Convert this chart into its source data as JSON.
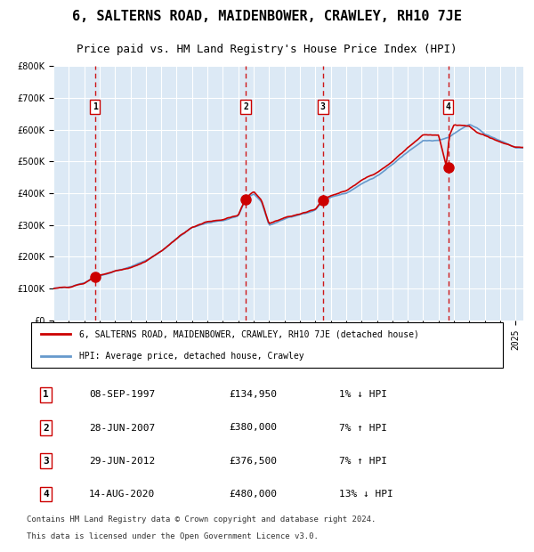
{
  "title": "6, SALTERNS ROAD, MAIDENBOWER, CRAWLEY, RH10 7JE",
  "subtitle": "Price paid vs. HM Land Registry's House Price Index (HPI)",
  "legend_line1": "6, SALTERNS ROAD, MAIDENBOWER, CRAWLEY, RH10 7JE (detached house)",
  "legend_line2": "HPI: Average price, detached house, Crawley",
  "footer1": "Contains HM Land Registry data © Crown copyright and database right 2024.",
  "footer2": "This data is licensed under the Open Government Licence v3.0.",
  "transactions": [
    {
      "num": 1,
      "date": "08-SEP-1997",
      "price": 134950,
      "pct": "1%",
      "dir": "↓",
      "x_year": 1997.69
    },
    {
      "num": 2,
      "date": "28-JUN-2007",
      "price": 380000,
      "pct": "7%",
      "dir": "↑",
      "x_year": 2007.49
    },
    {
      "num": 3,
      "date": "29-JUN-2012",
      "price": 376500,
      "pct": "7%",
      "dir": "↑",
      "x_year": 2012.49
    },
    {
      "num": 4,
      "date": "14-AUG-2020",
      "price": 480000,
      "pct": "13%",
      "dir": "↓",
      "x_year": 2020.62
    }
  ],
  "ylim": [
    0,
    800000
  ],
  "xlim_start": 1995.0,
  "xlim_end": 2025.5,
  "background_color": "#dce9f5",
  "plot_bg": "#dce9f5",
  "grid_color": "#ffffff",
  "red_line_color": "#cc0000",
  "blue_line_color": "#6699cc",
  "dashed_color": "#cc0000",
  "marker_color": "#cc0000",
  "box_color": "#cc0000",
  "title_fontsize": 11,
  "subtitle_fontsize": 9,
  "tick_fontsize": 8,
  "label_fontsize": 8
}
